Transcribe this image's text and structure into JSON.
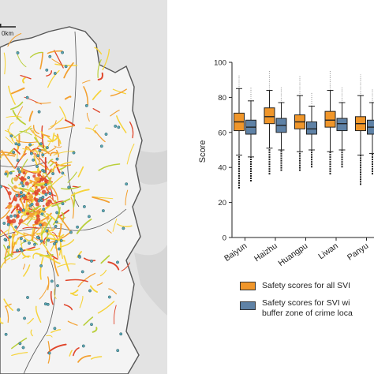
{
  "map": {
    "scale_label": "0km",
    "colors": {
      "background": "#e3e3e3",
      "district": "#f4f4f4",
      "boundary": "#555555",
      "road_low": "#f6d33a",
      "road_mid": "#f3a030",
      "road_high": "#e0452a",
      "road_green": "#b9cf3a",
      "crime_point": "#5aa6b3"
    }
  },
  "chart_data": {
    "type": "boxplot",
    "ylabel": "Score",
    "xlabel": "",
    "title": "",
    "ylim": [
      0,
      100
    ],
    "yticks": [
      "0",
      "20",
      "40",
      "60",
      "80",
      "100"
    ],
    "categories": [
      "Baiyun",
      "Haizhu",
      "Huangpu",
      "Liwan",
      "Panyu"
    ],
    "grid": false,
    "series": [
      {
        "name": "Safety scores for all SVI",
        "color": "#f0962a",
        "boxes": [
          {
            "min": 47,
            "q1": 61,
            "median": 66,
            "q3": 71,
            "max": 85,
            "outlier_low": 28,
            "outlier_high": 93
          },
          {
            "min": 51,
            "q1": 65,
            "median": 69,
            "q3": 74,
            "max": 84,
            "outlier_low": 36,
            "outlier_high": 95
          },
          {
            "min": 49,
            "q1": 62,
            "median": 66,
            "q3": 70,
            "max": 81,
            "outlier_low": 38,
            "outlier_high": 92
          },
          {
            "min": 49,
            "q1": 63,
            "median": 67,
            "q3": 72,
            "max": 84,
            "outlier_low": 36,
            "outlier_high": 95
          },
          {
            "min": 47,
            "q1": 61,
            "median": 65,
            "q3": 69,
            "max": 81,
            "outlier_low": 30,
            "outlier_high": 93
          }
        ]
      },
      {
        "name": "Safety scores for SVI wi buffer zone of crime loca",
        "name_lines": [
          "Safety scores for SVI wi",
          "buffer zone of crime loca"
        ],
        "color": "#5f82a6",
        "boxes": [
          {
            "min": 46,
            "q1": 59,
            "median": 63,
            "q3": 67,
            "max": 78,
            "outlier_low": 32,
            "outlier_high": 86
          },
          {
            "min": 50,
            "q1": 60,
            "median": 64,
            "q3": 68,
            "max": 77,
            "outlier_low": 38,
            "outlier_high": 86
          },
          {
            "min": 50,
            "q1": 59,
            "median": 62,
            "q3": 66,
            "max": 75,
            "outlier_low": 40,
            "outlier_high": 83
          },
          {
            "min": 50,
            "q1": 61,
            "median": 65,
            "q3": 68,
            "max": 77,
            "outlier_low": 40,
            "outlier_high": 86
          },
          {
            "min": 48,
            "q1": 59,
            "median": 63,
            "q3": 67,
            "max": 77,
            "outlier_low": 36,
            "outlier_high": 85
          }
        ]
      }
    ],
    "legend": "bottom"
  }
}
